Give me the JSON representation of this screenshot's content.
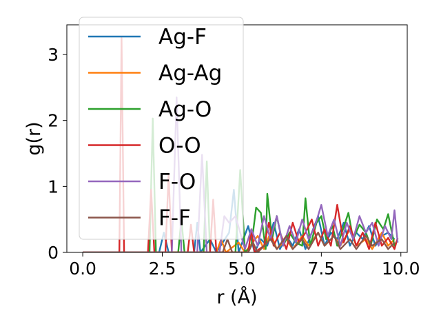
{
  "chart_data": {
    "type": "line",
    "title": "",
    "xlabel": "r (Å)",
    "ylabel": "g(r)",
    "xlim": [
      -0.5,
      10.2
    ],
    "ylim": [
      0,
      3.45
    ],
    "xticks": [
      0.0,
      2.5,
      5.0,
      7.5,
      10.0
    ],
    "xtick_labels": [
      "0.0",
      "2.5",
      "5.0",
      "7.5",
      "10.0"
    ],
    "yticks": [
      0,
      1,
      2,
      3
    ],
    "ytick_labels": [
      "0",
      "1",
      "2",
      "3"
    ],
    "grid": false,
    "legend_position": "upper-left",
    "series": [
      {
        "name": "Ag-F",
        "color": "#1f77b4",
        "points": [
          [
            0,
            0
          ],
          [
            2.4,
            0
          ],
          [
            2.55,
            0.3
          ],
          [
            2.7,
            0
          ],
          [
            3.5,
            0
          ],
          [
            3.6,
            0.45
          ],
          [
            3.7,
            0
          ],
          [
            4.0,
            0.2
          ],
          [
            4.2,
            0
          ],
          [
            4.6,
            0.3
          ],
          [
            4.75,
            0.95
          ],
          [
            4.9,
            0
          ],
          [
            5.2,
            0.4
          ],
          [
            5.4,
            0
          ],
          [
            5.6,
            0.2
          ],
          [
            5.8,
            0.1
          ],
          [
            6.0,
            0.45
          ],
          [
            6.2,
            0.05
          ],
          [
            6.4,
            0.25
          ],
          [
            6.6,
            0.1
          ],
          [
            6.8,
            0.35
          ],
          [
            7.0,
            0.05
          ],
          [
            7.2,
            0.3
          ],
          [
            7.4,
            0.55
          ],
          [
            7.6,
            0.1
          ],
          [
            7.8,
            0.3
          ],
          [
            8.0,
            0.2
          ],
          [
            8.2,
            0.45
          ],
          [
            8.4,
            0.1
          ],
          [
            8.6,
            0.3
          ],
          [
            8.8,
            0.2
          ],
          [
            9.0,
            0.4
          ],
          [
            9.2,
            0.1
          ],
          [
            9.4,
            0.25
          ],
          [
            9.6,
            0.3
          ],
          [
            9.8,
            0.2
          ]
        ]
      },
      {
        "name": "Ag-Ag",
        "color": "#ff7f0e",
        "points": [
          [
            0,
            0
          ],
          [
            4.2,
            0
          ],
          [
            4.35,
            0.2
          ],
          [
            4.5,
            0
          ],
          [
            4.9,
            0.15
          ],
          [
            5.1,
            0
          ],
          [
            5.5,
            0.25
          ],
          [
            5.7,
            0.05
          ],
          [
            5.9,
            0.3
          ],
          [
            6.1,
            0.05
          ],
          [
            6.4,
            0.2
          ],
          [
            6.6,
            0.05
          ],
          [
            6.9,
            0.25
          ],
          [
            7.1,
            0.1
          ],
          [
            7.4,
            0.3
          ],
          [
            7.6,
            0.1
          ],
          [
            7.9,
            0.25
          ],
          [
            8.1,
            0.1
          ],
          [
            8.4,
            0.35
          ],
          [
            8.6,
            0.1
          ],
          [
            8.9,
            0.2
          ],
          [
            9.1,
            0.05
          ],
          [
            9.4,
            0.3
          ],
          [
            9.6,
            0.1
          ],
          [
            9.8,
            0.2
          ]
        ]
      },
      {
        "name": "Ag-O",
        "color": "#2ca02c",
        "points": [
          [
            0,
            0
          ],
          [
            2.1,
            0
          ],
          [
            2.2,
            2.03
          ],
          [
            2.3,
            0
          ],
          [
            3.0,
            0
          ],
          [
            3.1,
            0.5
          ],
          [
            3.2,
            0
          ],
          [
            3.8,
            0
          ],
          [
            3.9,
            1.38
          ],
          [
            4.0,
            0
          ],
          [
            4.8,
            0
          ],
          [
            4.95,
            1.25
          ],
          [
            5.1,
            0
          ],
          [
            5.3,
            0.1
          ],
          [
            5.45,
            0.68
          ],
          [
            5.6,
            0.6
          ],
          [
            5.75,
            0.05
          ],
          [
            5.8,
            0.89
          ],
          [
            5.95,
            0.2
          ],
          [
            6.1,
            0.55
          ],
          [
            6.3,
            0.1
          ],
          [
            6.5,
            0.3
          ],
          [
            6.7,
            0.15
          ],
          [
            6.9,
            0.1
          ],
          [
            7.0,
            0.82
          ],
          [
            7.15,
            0.1
          ],
          [
            7.35,
            0.45
          ],
          [
            7.5,
            0.55
          ],
          [
            7.65,
            0.2
          ],
          [
            7.85,
            0.4
          ],
          [
            8.0,
            0.1
          ],
          [
            8.2,
            0.38
          ],
          [
            8.35,
            0.6
          ],
          [
            8.5,
            0.2
          ],
          [
            8.7,
            0.42
          ],
          [
            8.9,
            0.3
          ],
          [
            9.05,
            0.1
          ],
          [
            9.25,
            0.5
          ],
          [
            9.45,
            0.35
          ],
          [
            9.6,
            0.58
          ],
          [
            9.8,
            0.1
          ],
          [
            9.9,
            0.2
          ]
        ]
      },
      {
        "name": "O-O",
        "color": "#d62728",
        "points": [
          [
            0,
            0
          ],
          [
            1.15,
            0
          ],
          [
            1.22,
            3.25
          ],
          [
            1.3,
            0
          ],
          [
            2.05,
            0
          ],
          [
            2.15,
            0.95
          ],
          [
            2.25,
            0
          ],
          [
            2.6,
            0
          ],
          [
            2.7,
            1.18
          ],
          [
            2.8,
            0
          ],
          [
            3.3,
            0
          ],
          [
            3.4,
            0.42
          ],
          [
            3.5,
            0
          ],
          [
            4.0,
            0
          ],
          [
            4.1,
            0.8
          ],
          [
            4.2,
            0
          ],
          [
            5.2,
            0
          ],
          [
            5.3,
            0.35
          ],
          [
            5.4,
            0
          ],
          [
            5.7,
            0.1
          ],
          [
            5.85,
            0.45
          ],
          [
            6.0,
            0.1
          ],
          [
            6.2,
            0.3
          ],
          [
            6.4,
            0.05
          ],
          [
            6.6,
            0.45
          ],
          [
            6.8,
            0.15
          ],
          [
            7.0,
            0.3
          ],
          [
            7.2,
            0.5
          ],
          [
            7.4,
            0.1
          ],
          [
            7.6,
            0.35
          ],
          [
            7.8,
            0.1
          ],
          [
            8.0,
            0.72
          ],
          [
            8.2,
            0.15
          ],
          [
            8.4,
            0.4
          ],
          [
            8.6,
            0.1
          ],
          [
            8.8,
            0.3
          ],
          [
            9.0,
            0.05
          ],
          [
            9.2,
            0.45
          ],
          [
            9.4,
            0.1
          ],
          [
            9.6,
            0.22
          ],
          [
            9.8,
            0.05
          ],
          [
            9.9,
            0.22
          ]
        ]
      },
      {
        "name": "F-O",
        "color": "#9467bd",
        "points": [
          [
            0,
            0
          ],
          [
            2.8,
            0
          ],
          [
            2.95,
            2.35
          ],
          [
            3.1,
            0
          ],
          [
            3.6,
            0
          ],
          [
            3.75,
            1.48
          ],
          [
            3.9,
            0
          ],
          [
            4.3,
            0
          ],
          [
            4.45,
            0.55
          ],
          [
            4.6,
            0.45
          ],
          [
            4.8,
            0.55
          ],
          [
            4.95,
            0.3
          ],
          [
            5.1,
            0.05
          ],
          [
            5.3,
            0.35
          ],
          [
            5.5,
            0.1
          ],
          [
            5.7,
            0.55
          ],
          [
            5.9,
            0.2
          ],
          [
            6.1,
            0.55
          ],
          [
            6.3,
            0.1
          ],
          [
            6.5,
            0.4
          ],
          [
            6.7,
            0.15
          ],
          [
            6.9,
            0.5
          ],
          [
            7.1,
            0.2
          ],
          [
            7.3,
            0.4
          ],
          [
            7.5,
            0.72
          ],
          [
            7.7,
            0.25
          ],
          [
            7.9,
            0.5
          ],
          [
            8.1,
            0.1
          ],
          [
            8.3,
            0.45
          ],
          [
            8.5,
            0.2
          ],
          [
            8.7,
            0.55
          ],
          [
            8.9,
            0.3
          ],
          [
            9.1,
            0.45
          ],
          [
            9.3,
            0.1
          ],
          [
            9.5,
            0.4
          ],
          [
            9.7,
            0.2
          ],
          [
            9.8,
            0.64
          ],
          [
            9.9,
            0.15
          ]
        ]
      },
      {
        "name": "F-F",
        "color": "#8c564b",
        "points": [
          [
            0,
            0
          ],
          [
            4.4,
            0
          ],
          [
            4.55,
            0.2
          ],
          [
            4.7,
            0
          ],
          [
            5.2,
            0
          ],
          [
            5.35,
            0.15
          ],
          [
            5.5,
            0
          ],
          [
            5.9,
            0.2
          ],
          [
            6.1,
            0.05
          ],
          [
            6.4,
            0.25
          ],
          [
            6.6,
            0.05
          ],
          [
            6.9,
            0.2
          ],
          [
            7.1,
            0.05
          ],
          [
            7.4,
            0.3
          ],
          [
            7.6,
            0.1
          ],
          [
            7.9,
            0.25
          ],
          [
            8.1,
            0.05
          ],
          [
            8.4,
            0.2
          ],
          [
            8.6,
            0.05
          ],
          [
            8.9,
            0.25
          ],
          [
            9.1,
            0.1
          ],
          [
            9.4,
            0.2
          ],
          [
            9.6,
            0.05
          ],
          [
            9.8,
            0.15
          ]
        ]
      }
    ]
  }
}
